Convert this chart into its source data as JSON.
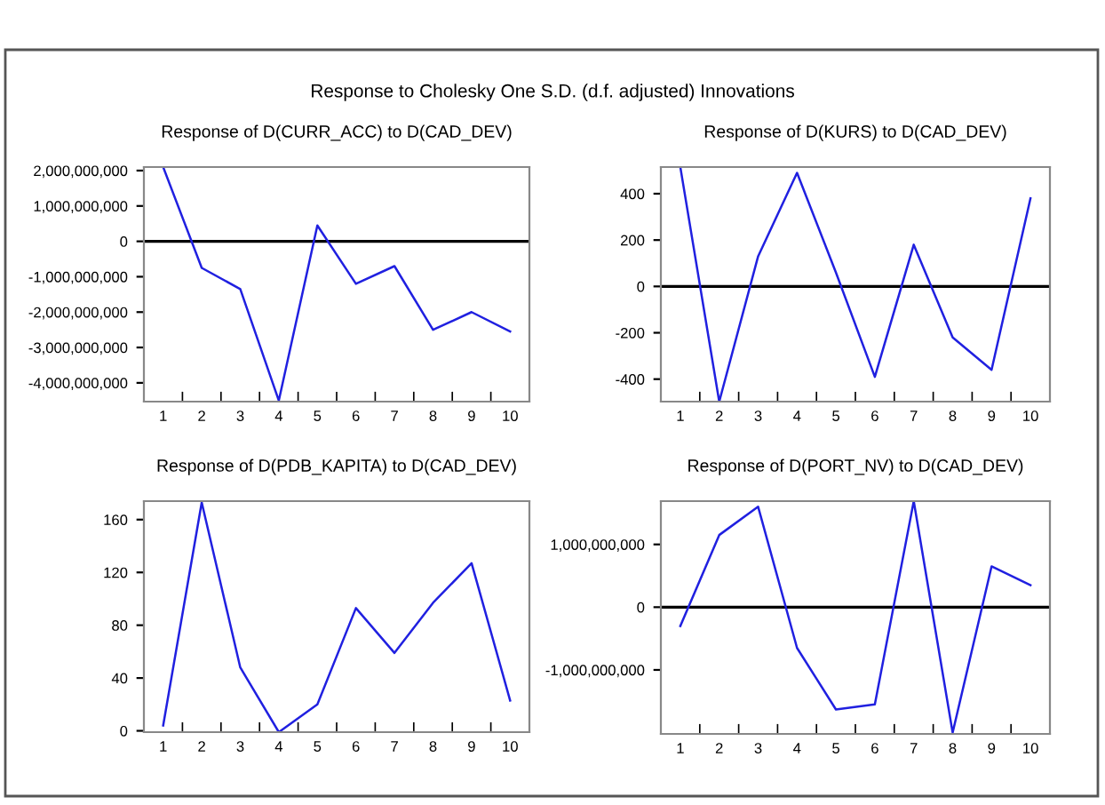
{
  "chart_data": [
    {
      "type": "line",
      "title": "Response of D(CURR_ACC) to D(CAD_DEV)",
      "annotations": [
        "Response to Cholesky One S.D. (d.f. adjusted) Innovations"
      ],
      "categories": [
        "1",
        "2",
        "3",
        "4",
        "5",
        "6",
        "7",
        "8",
        "9",
        "10"
      ],
      "series": [
        {
          "color": "#2020e0",
          "values": [
            2100000000,
            -750000000,
            -1350000000,
            -4500000000,
            450000000,
            -1200000000,
            -700000000,
            -2500000000,
            -2000000000,
            -2550000000
          ]
        }
      ],
      "ylim": [
        -4530000000,
        2100000000
      ],
      "yticks": [
        {
          "value": -4000000000,
          "label": "-4,000,000,000"
        },
        {
          "value": -3000000000,
          "label": "-3,000,000,000"
        },
        {
          "value": -2000000000,
          "label": "-2,000,000,000"
        },
        {
          "value": -1000000000,
          "label": "-1,000,000,000"
        },
        0,
        {
          "value": 1000000000,
          "label": "1,000,000,000"
        },
        {
          "value": 2000000000,
          "label": "2,000,000,000"
        }
      ],
      "ref_lines": [
        {
          "axis": "y",
          "value": 0,
          "color": "#000000"
        }
      ],
      "grid": false,
      "legend": false
    },
    {
      "type": "line",
      "title": "Response of D(KURS) to D(CAD_DEV)",
      "categories": [
        "1",
        "2",
        "3",
        "4",
        "5",
        "6",
        "7",
        "8",
        "9",
        "10"
      ],
      "series": [
        {
          "color": "#2020e0",
          "values": [
            515,
            -497,
            130,
            490,
            60,
            -390,
            180,
            -220,
            -360,
            380
          ]
        }
      ],
      "ylim": [
        -497,
        515
      ],
      "yticks": [
        -400,
        -200,
        0,
        200,
        400
      ],
      "ref_lines": [
        {
          "axis": "y",
          "value": 0,
          "color": "#000000"
        }
      ],
      "grid": false,
      "legend": false
    },
    {
      "type": "line",
      "title": "Response of D(PDB_KAPITA) to D(CAD_DEV)",
      "categories": [
        "1",
        "2",
        "3",
        "4",
        "5",
        "6",
        "7",
        "8",
        "9",
        "10"
      ],
      "series": [
        {
          "color": "#2020e0",
          "values": [
            4,
            173,
            48,
            -1,
            20,
            93,
            59,
            97,
            127,
            23
          ]
        }
      ],
      "ylim": [
        -1,
        174
      ],
      "yticks": [
        0,
        40,
        80,
        120,
        160
      ],
      "grid": false,
      "legend": false
    },
    {
      "type": "line",
      "title": "Response of D(PORT_NV) to D(CAD_DEV)",
      "categories": [
        "1",
        "2",
        "3",
        "4",
        "5",
        "6",
        "7",
        "8",
        "9",
        "10"
      ],
      "series": [
        {
          "color": "#2020e0",
          "values": [
            -300000000,
            1150000000,
            1600000000,
            -650000000,
            -1630000000,
            -1550000000,
            1690000000,
            -2000000000,
            650000000,
            350000000
          ]
        }
      ],
      "ylim": [
        -2020000000,
        1690000000
      ],
      "yticks": [
        {
          "value": -1000000000,
          "label": "-1,000,000,000"
        },
        0,
        {
          "value": 1000000000,
          "label": "1,000,000,000"
        }
      ],
      "ref_lines": [
        {
          "axis": "y",
          "value": 0,
          "color": "#000000"
        }
      ],
      "grid": false,
      "legend": false
    }
  ]
}
